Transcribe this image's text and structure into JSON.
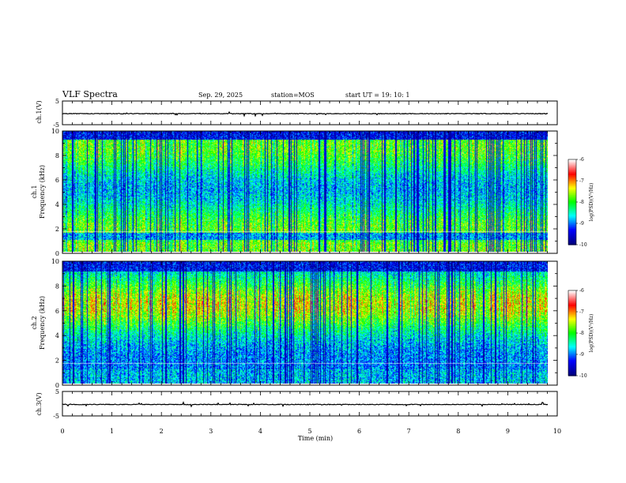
{
  "header": {
    "title": "VLF Spectra",
    "date": "Sep. 29, 2025",
    "station": "station=MOS",
    "start_ut": "start  UT =   19: 10: 1"
  },
  "chart_data": [
    {
      "type": "line",
      "name": "ch1-waveform",
      "ylabel": "ch.1(V)",
      "ylim": [
        -5,
        5
      ],
      "yticks": [
        "5",
        "-5"
      ],
      "xlim": [
        0,
        10
      ],
      "description_level": -0.1
    },
    {
      "type": "heatmap",
      "name": "ch1-spectrogram",
      "ylabel_lines": [
        "ch.1",
        "Frequency (kHz)"
      ],
      "ylim": [
        0,
        10
      ],
      "yticks": [
        "0",
        "2",
        "4",
        "6",
        "8",
        "10"
      ],
      "xlim": [
        0,
        9.85
      ],
      "colorbar": {
        "label": "log(PSD)(V²/Hz)",
        "range": [
          -10,
          -6
        ],
        "ticks": [
          "-6",
          "-7",
          "-8",
          "-9",
          "-10"
        ]
      },
      "band_profile": {
        "low_kHz": [
          0,
          1.2
        ],
        "strong_kHz": [
          0.3,
          9.8
        ],
        "reference_line_kHz": 1.7
      }
    },
    {
      "type": "heatmap",
      "name": "ch2-spectrogram",
      "ylabel_lines": [
        "ch.2",
        "Frequency (kHz)"
      ],
      "ylim": [
        0,
        10
      ],
      "yticks": [
        "0",
        "2",
        "4",
        "6",
        "8",
        "10"
      ],
      "xlim": [
        0,
        9.85
      ],
      "colorbar": {
        "label": "log(PSD)(V²/Hz)",
        "range": [
          -10,
          -6
        ],
        "ticks": [
          "-6",
          "-7",
          "-8",
          "-9",
          "-10"
        ]
      },
      "band_profile": {
        "peak_kHz": 6.5,
        "reference_line_kHz": 1.7
      }
    },
    {
      "type": "line",
      "name": "ch3-waveform",
      "ylabel": "ch.3(V)",
      "ylim": [
        -5,
        5
      ],
      "yticks": [
        "5",
        "-5"
      ],
      "xlim": [
        0,
        10
      ],
      "description_level": -0.1
    }
  ],
  "xaxis": {
    "label": "Time  (min)",
    "ticks": [
      "0",
      "1",
      "2",
      "3",
      "4",
      "5",
      "6",
      "7",
      "8",
      "9",
      "10"
    ]
  },
  "colors": {
    "jet": [
      "#000080",
      "#0000ff",
      "#00ffff",
      "#00ff00",
      "#ffff00",
      "#ff0000",
      "#ffffff"
    ]
  }
}
